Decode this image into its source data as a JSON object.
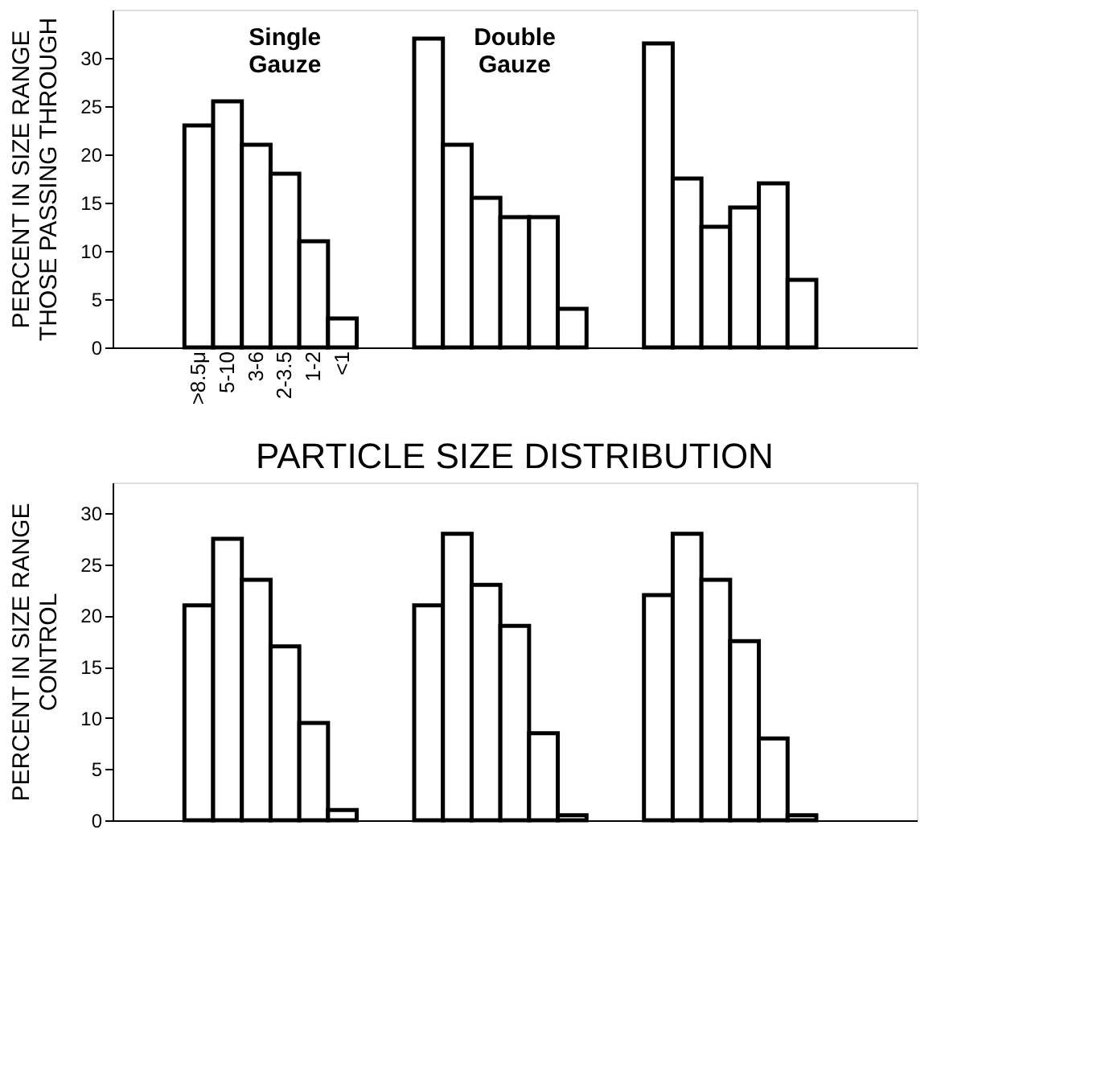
{
  "chart_data": [
    {
      "type": "bar",
      "ylabel": "PERCENT IN SIZE RANGE\nTHOSE PASSING THROUGH",
      "categories": [
        ">8.5μ",
        "5-10",
        "3-6",
        "2-3.5",
        "1-2",
        "<1",
        null,
        null,
        null,
        null,
        null,
        null,
        null,
        null,
        null,
        null,
        null,
        null,
        null,
        null,
        null,
        null
      ],
      "series": [
        {
          "name": "Single Gauze",
          "color": "#000000",
          "values": [
            23,
            25.5,
            21,
            18,
            11,
            3,
            null,
            null,
            null,
            null,
            null,
            null,
            null,
            null,
            null,
            null,
            null,
            null,
            null,
            null,
            null,
            null
          ]
        },
        {
          "name": "Double Gauze",
          "color": "#000000",
          "values": [
            null,
            null,
            null,
            null,
            null,
            null,
            null,
            null,
            32,
            21,
            15.5,
            13.5,
            13.5,
            4,
            null,
            null,
            null,
            null,
            null,
            null,
            null,
            null
          ]
        },
        {
          "color": "#000000",
          "values": [
            null,
            null,
            null,
            null,
            null,
            null,
            null,
            null,
            null,
            null,
            null,
            null,
            null,
            null,
            null,
            null,
            31.5,
            17.5,
            12.5,
            14.5,
            17,
            7
          ]
        }
      ],
      "ylim": [
        0,
        35
      ],
      "yticks": [
        0,
        5,
        10,
        15,
        20,
        25,
        30
      ],
      "grid": false,
      "legend": false
    },
    {
      "type": "bar",
      "title": "PARTICLE SIZE DISTRIBUTION",
      "ylabel": "PERCENT IN SIZE RANGE\nCONTROL",
      "categories": [
        null,
        null,
        null,
        null,
        null,
        null,
        null,
        null,
        null,
        null,
        null,
        null,
        null,
        null,
        null,
        null,
        null,
        null,
        null,
        null,
        null,
        null
      ],
      "series": [
        {
          "color": "#000000",
          "values": [
            21,
            27.5,
            23.5,
            17,
            9.5,
            1,
            null,
            null,
            null,
            null,
            null,
            null,
            null,
            null,
            null,
            null,
            null,
            null,
            null,
            null,
            null,
            null
          ]
        },
        {
          "color": "#000000",
          "values": [
            null,
            null,
            null,
            null,
            null,
            null,
            null,
            null,
            21,
            28,
            23,
            19,
            8.5,
            0.5,
            null,
            null,
            null,
            null,
            null,
            null,
            null,
            null
          ]
        },
        {
          "color": "#000000",
          "values": [
            null,
            null,
            null,
            null,
            null,
            null,
            null,
            null,
            null,
            null,
            null,
            null,
            null,
            null,
            null,
            null,
            22,
            28,
            23.5,
            17.5,
            8,
            0.5
          ]
        }
      ],
      "ylim": [
        0,
        33
      ],
      "yticks": [
        0,
        5,
        10,
        15,
        20,
        25,
        30
      ],
      "grid": false,
      "legend": false
    }
  ]
}
